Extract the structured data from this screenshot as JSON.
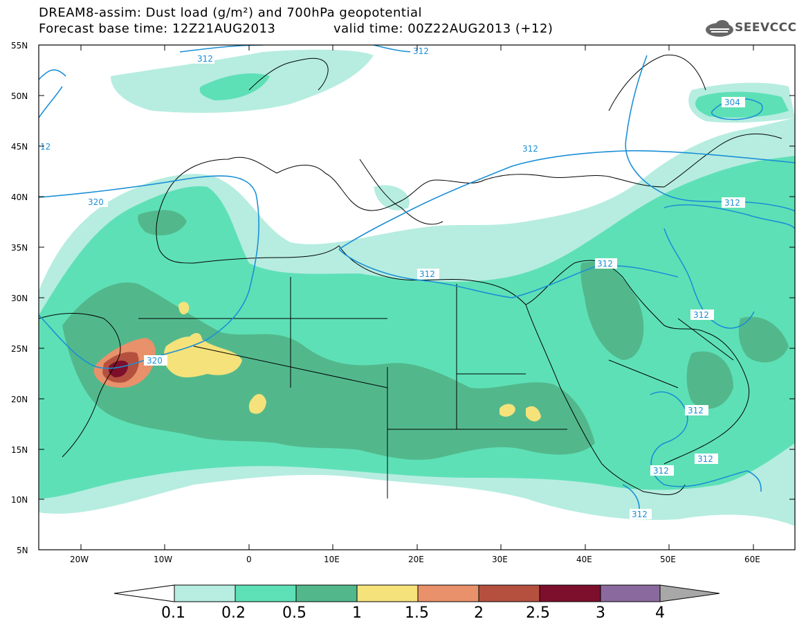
{
  "header": {
    "title_line1": "DREAM8-assim: Dust load (g/m²) and 700hPa geopotential",
    "title_line2": "Forecast base time: 12Z21AUG2013",
    "valid_time": "valid time: 00Z22AUG2013 (+12)",
    "logo_text": "SEEVCCC"
  },
  "axes": {
    "lat_labels": [
      "55N",
      "50N",
      "45N",
      "40N",
      "35N",
      "30N",
      "25N",
      "20N",
      "15N",
      "10N",
      "5N"
    ],
    "lon_labels": [
      "20W",
      "10W",
      "0",
      "10E",
      "20E",
      "30E",
      "40E",
      "50E",
      "60E"
    ]
  },
  "contour_labels": [
    "312",
    "304",
    "12",
    "312",
    "320",
    "312",
    "312",
    "312",
    "312",
    "312",
    "320",
    "312",
    "312",
    "312",
    "312"
  ],
  "colorbar": {
    "ticks": [
      "0.1",
      "0.2",
      "0.5",
      "1",
      "1.5",
      "2",
      "2.5",
      "3",
      "4"
    ],
    "colors": [
      "#b6ede0",
      "#5ee0b6",
      "#52b88c",
      "#f5e27a",
      "#e8916a",
      "#b5503f",
      "#7d0f2c",
      "#8a6a9e"
    ]
  },
  "colors": {
    "land_border": "#000000",
    "contour": "#1a8fd6"
  }
}
